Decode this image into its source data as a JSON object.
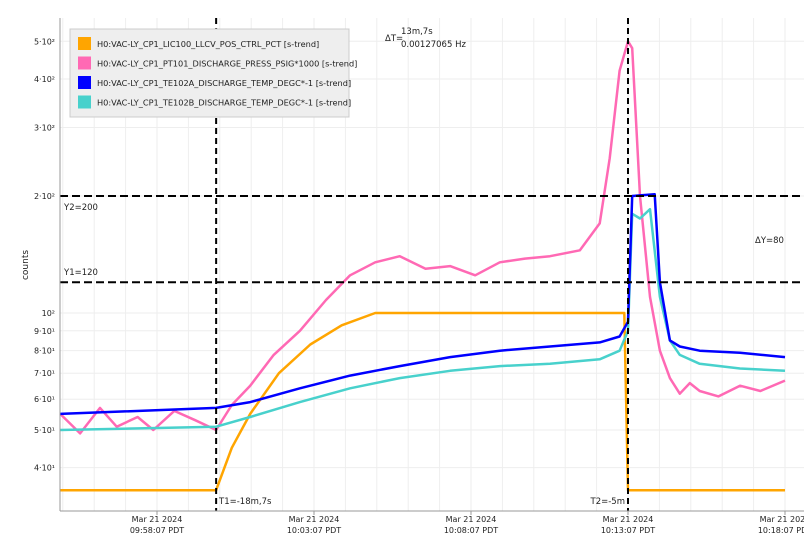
{
  "chart_data": {
    "type": "line",
    "ylabel": "counts",
    "yscale": "log",
    "ylim": [
      31,
      574
    ],
    "xlim": [
      "09:55:02",
      "10:18:07"
    ],
    "grid": true,
    "legend_placement": "top-left",
    "y_ticks": [
      {
        "value": 40,
        "label": "4·10¹"
      },
      {
        "value": 50,
        "label": "5·10¹"
      },
      {
        "value": 60,
        "label": "6·10¹"
      },
      {
        "value": 70,
        "label": "7·10¹"
      },
      {
        "value": 80,
        "label": "8·10¹"
      },
      {
        "value": 90,
        "label": "9·10¹"
      },
      {
        "value": 100,
        "label": "10²"
      },
      {
        "value": 200,
        "label": "2·10²"
      },
      {
        "value": 300,
        "label": "3·10²"
      },
      {
        "value": 400,
        "label": "4·10²"
      },
      {
        "value": 500,
        "label": "5·10²"
      }
    ],
    "x_ticks": [
      {
        "time": "09:58:07",
        "date": "Mar 21 2024",
        "label": "09:58:07 PDT"
      },
      {
        "time": "10:03:07",
        "date": "Mar 21 2024",
        "label": "10:03:07 PDT"
      },
      {
        "time": "10:08:07",
        "date": "Mar 21 2024",
        "label": "10:08:07 PDT"
      },
      {
        "time": "10:13:07",
        "date": "Mar 21 2024",
        "label": "10:13:07 PDT"
      },
      {
        "time": "10:18:07",
        "date": "Mar 21 2024",
        "label": "10:18:07 PDT"
      }
    ],
    "series": [
      {
        "name": "H0:VAC-LY_CP1_LIC100_LLCV_POS_CTRL_PCT [s-trend]",
        "color": "#ffa500",
        "x": [
          "09:55:02",
          "10:00:00",
          "10:00:30",
          "10:01:05",
          "10:02:00",
          "10:03:00",
          "10:04:00",
          "10:05:04",
          "10:13:00",
          "10:13:07",
          "10:18:07"
        ],
        "y": [
          35,
          35,
          45,
          55,
          70,
          83,
          93,
          100,
          100,
          35,
          35
        ]
      },
      {
        "name": "H0:VAC-LY_CP1_PT101_DISCHARGE_PRESS_PSIG*1000 [s-trend]",
        "color": "#ff69b4",
        "x": [
          "09:55:02",
          "09:55:40",
          "09:56:18",
          "09:56:50",
          "09:57:30",
          "09:58:00",
          "09:58:40",
          "09:59:20",
          "10:00:00",
          "10:00:30",
          "10:01:05",
          "10:01:50",
          "10:02:40",
          "10:03:30",
          "10:04:16",
          "10:05:04",
          "10:05:51",
          "10:06:40",
          "10:07:27",
          "10:08:15",
          "10:09:02",
          "10:09:50",
          "10:10:38",
          "10:11:35",
          "10:12:13",
          "10:12:32",
          "10:12:51",
          "10:13:07",
          "10:13:15",
          "10:13:30",
          "10:13:49",
          "10:14:08",
          "10:14:27",
          "10:14:46",
          "10:15:05",
          "10:15:24",
          "10:16:00",
          "10:16:41",
          "10:17:20",
          "10:18:07"
        ],
        "y": [
          55,
          49,
          57,
          51,
          54,
          50,
          56,
          53,
          50,
          58,
          65,
          78,
          90,
          108,
          125,
          135,
          140,
          130,
          132,
          125,
          135,
          138,
          140,
          145,
          170,
          250,
          420,
          500,
          480,
          200,
          110,
          80,
          68,
          62,
          66,
          63,
          61,
          65,
          63,
          67
        ]
      },
      {
        "name": "H0:VAC-LY_CP1_TE102A_DISCHARGE_TEMP_DEGC*-1 [s-trend]",
        "color": "#0000ff",
        "x": [
          "09:55:02",
          "10:00:00",
          "10:01:05",
          "10:02:40",
          "10:04:16",
          "10:05:51",
          "10:07:27",
          "10:09:02",
          "10:10:38",
          "10:12:13",
          "10:12:51",
          "10:13:07",
          "10:13:15",
          "10:13:58",
          "10:14:08",
          "10:14:27",
          "10:14:46",
          "10:15:24",
          "10:16:41",
          "10:18:07"
        ],
        "y": [
          55,
          57,
          59,
          64,
          69,
          73,
          77,
          80,
          82,
          84,
          87,
          95,
          200,
          202,
          120,
          85,
          82,
          80,
          79,
          77
        ]
      },
      {
        "name": "H0:VAC-LY_CP1_TE102B_DISCHARGE_TEMP_DEGC*-1 [s-trend]",
        "color": "#48d1cc",
        "x": [
          "09:55:02",
          "10:00:00",
          "10:01:05",
          "10:02:40",
          "10:04:16",
          "10:05:51",
          "10:07:27",
          "10:09:02",
          "10:10:38",
          "10:12:13",
          "10:12:51",
          "10:13:07",
          "10:13:15",
          "10:13:30",
          "10:13:49",
          "10:14:08",
          "10:14:27",
          "10:14:46",
          "10:15:24",
          "10:16:41",
          "10:18:07"
        ],
        "y": [
          50,
          51,
          54,
          59,
          64,
          68,
          71,
          73,
          74,
          76,
          80,
          90,
          180,
          175,
          185,
          110,
          85,
          78,
          74,
          72,
          71
        ]
      }
    ],
    "cursors": {
      "t1": {
        "time": "10:00:00",
        "label": "T1=-18m,7s"
      },
      "t2": {
        "time": "10:13:07",
        "label": "T2=-5m"
      },
      "y1": {
        "value": 120,
        "label": "Y1=120"
      },
      "y2": {
        "value": 200,
        "label": "Y2=200"
      },
      "delta_t_label": "ΔT=",
      "delta_t": "13m,7s",
      "frequency": "0.00127065 Hz",
      "delta_y": "ΔY=80"
    }
  }
}
